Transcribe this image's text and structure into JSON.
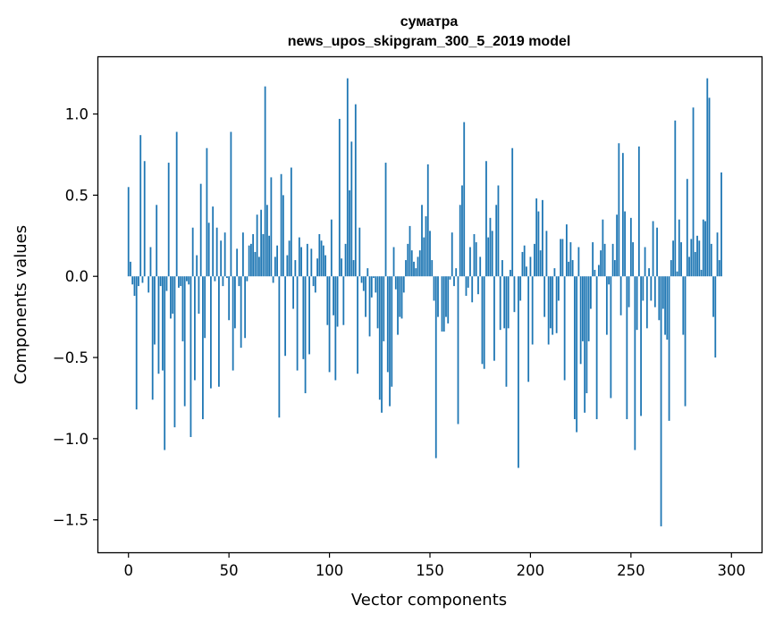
{
  "chart_data": {
    "type": "bar",
    "title_line1": "суматра",
    "title_line2": "news_upos_skipgram_300_5_2019 model",
    "xlabel": "Vector components",
    "ylabel": "Components values",
    "xlim": [
      -15,
      315
    ],
    "ylim": [
      -1.7,
      1.35
    ],
    "xticks": [
      0,
      50,
      100,
      150,
      200,
      250,
      300
    ],
    "yticks": [
      -1.5,
      -1.0,
      -0.5,
      0.0,
      0.5,
      1.0
    ],
    "ytick_labels": [
      "−1.5",
      "−1.0",
      "−0.5",
      "0.0",
      "0.5",
      "1.0"
    ],
    "bar_color": "#1f77b4",
    "values": [
      0.55,
      0.09,
      -0.05,
      -0.12,
      -0.82,
      -0.06,
      0.87,
      -0.04,
      0.71,
      0.0,
      -0.1,
      0.18,
      -0.76,
      -0.42,
      0.44,
      -0.6,
      -0.06,
      -0.58,
      -1.07,
      -0.09,
      0.7,
      -0.26,
      -0.23,
      -0.93,
      0.89,
      -0.07,
      -0.06,
      -0.4,
      -0.8,
      -0.03,
      -0.05,
      -0.99,
      0.3,
      -0.64,
      0.13,
      -0.23,
      0.57,
      -0.88,
      -0.38,
      0.79,
      0.33,
      -0.69,
      0.43,
      -0.03,
      0.3,
      -0.68,
      0.22,
      -0.06,
      0.27,
      -0.01,
      -0.27,
      0.89,
      -0.58,
      -0.32,
      0.17,
      -0.06,
      -0.44,
      0.27,
      -0.38,
      -0.03,
      0.19,
      0.2,
      0.26,
      0.15,
      0.38,
      0.12,
      0.41,
      0.26,
      1.17,
      0.44,
      0.25,
      0.61,
      -0.04,
      0.12,
      0.19,
      -0.87,
      0.63,
      0.5,
      -0.49,
      0.13,
      0.22,
      0.67,
      -0.2,
      0.1,
      -0.58,
      0.24,
      0.18,
      -0.51,
      -0.72,
      0.2,
      -0.48,
      0.17,
      -0.06,
      -0.1,
      0.11,
      0.26,
      0.22,
      0.19,
      0.13,
      -0.3,
      -0.59,
      0.35,
      -0.24,
      -0.64,
      -0.31,
      0.97,
      0.11,
      -0.3,
      0.2,
      1.22,
      0.53,
      0.83,
      0.1,
      1.06,
      -0.6,
      0.3,
      -0.04,
      -0.09,
      -0.25,
      0.05,
      -0.37,
      -0.13,
      -0.01,
      -0.1,
      -0.32,
      -0.76,
      -0.84,
      -0.4,
      0.7,
      -0.59,
      -0.8,
      -0.68,
      0.18,
      -0.08,
      -0.36,
      -0.25,
      -0.26,
      -0.1,
      0.1,
      0.2,
      0.31,
      0.16,
      0.09,
      0.05,
      0.12,
      0.16,
      0.44,
      0.24,
      0.37,
      0.69,
      0.28,
      0.1,
      -0.15,
      -1.12,
      -0.25,
      0.0,
      -0.34,
      -0.34,
      -0.25,
      -0.29,
      -0.02,
      0.27,
      -0.06,
      0.05,
      -0.91,
      0.44,
      0.56,
      0.95,
      -0.12,
      -0.07,
      0.18,
      -0.16,
      0.26,
      0.21,
      -0.11,
      0.12,
      -0.54,
      -0.57,
      0.71,
      0.24,
      0.36,
      0.28,
      -0.52,
      0.44,
      0.56,
      -0.33,
      0.1,
      -0.32,
      -0.68,
      -0.32,
      0.04,
      0.79,
      -0.22,
      0.0,
      -1.18,
      -0.15,
      0.15,
      0.19,
      0.06,
      -0.65,
      0.12,
      -0.42,
      0.2,
      0.48,
      0.4,
      0.16,
      0.47,
      -0.25,
      0.28,
      -0.42,
      -0.32,
      -0.36,
      0.05,
      -0.35,
      -0.15,
      0.23,
      0.23,
      -0.64,
      0.32,
      0.09,
      0.21,
      0.1,
      -0.88,
      -0.96,
      0.18,
      -0.54,
      -0.4,
      -0.84,
      -0.72,
      -0.4,
      -0.2,
      0.21,
      0.04,
      -0.88,
      0.07,
      0.16,
      0.35,
      0.2,
      -0.36,
      -0.05,
      -0.75,
      0.2,
      0.1,
      0.38,
      0.82,
      -0.24,
      0.76,
      0.4,
      -0.88,
      -0.19,
      0.36,
      0.21,
      -1.07,
      -0.33,
      0.8,
      -0.86,
      -0.15,
      0.18,
      -0.32,
      0.05,
      -0.15,
      0.34,
      -0.19,
      0.3,
      -0.27,
      -1.54,
      -0.2,
      -0.36,
      -0.39,
      -0.89,
      0.1,
      0.22,
      0.96,
      0.03,
      0.35,
      0.21,
      -0.36,
      -0.8,
      0.6,
      0.12,
      0.23,
      1.04,
      0.15,
      0.25,
      0.22,
      0.04,
      0.35,
      0.34,
      1.22,
      1.1,
      0.2,
      -0.25,
      -0.5,
      0.27,
      0.1,
      0.64
    ]
  }
}
